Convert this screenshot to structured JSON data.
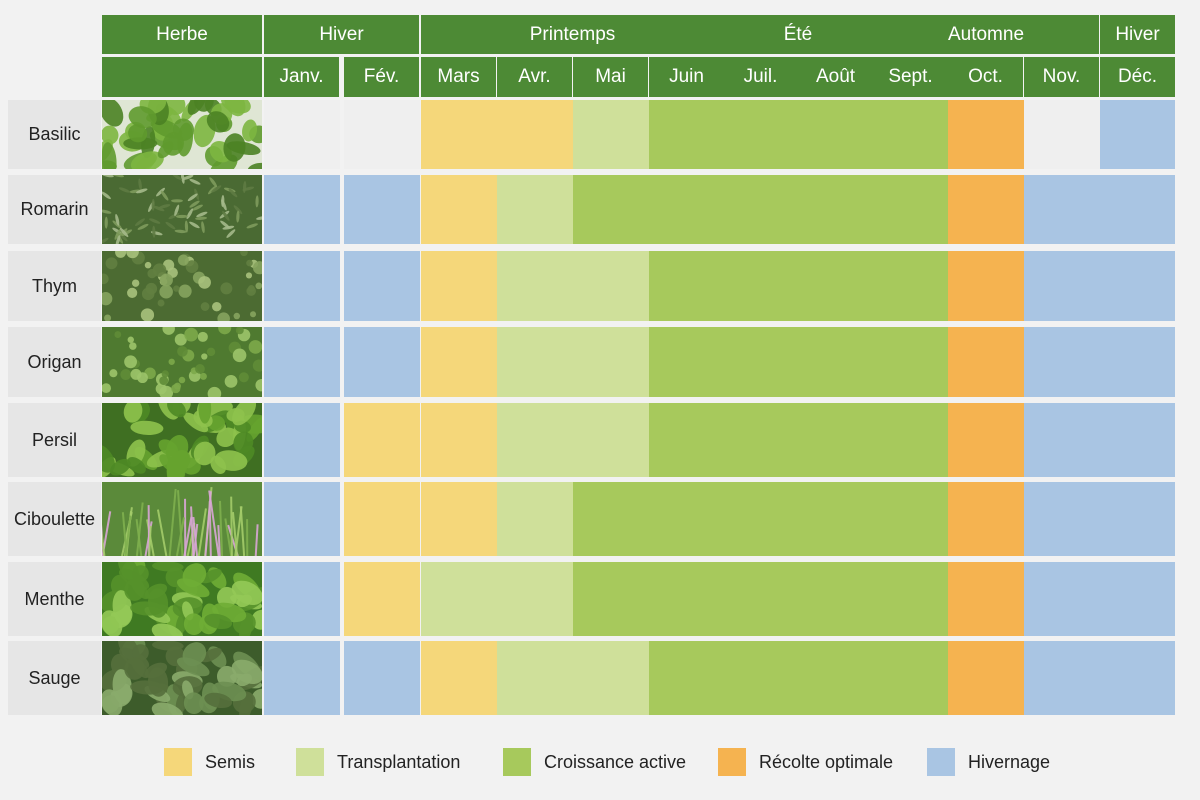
{
  "header": {
    "herb_label": "Herbe",
    "seasons": [
      {
        "label": "Hiver",
        "from": 0,
        "to": 1
      },
      {
        "label": "Printemps",
        "from": 2,
        "to": 5
      },
      {
        "label": "Été",
        "from": 6,
        "to": 7
      },
      {
        "label": "Automne",
        "from": 8,
        "to": 10
      },
      {
        "label": "Hiver",
        "from": 11,
        "to": 11
      }
    ],
    "months": [
      "Janv.",
      "Fév.",
      "Mars",
      "Avr.",
      "Mai",
      "Juin",
      "Juil.",
      "Août",
      "Sept.",
      "Oct.",
      "Nov.",
      "Déc."
    ]
  },
  "phases": {
    "semis": {
      "label": "Semis",
      "color": "#f5d77a"
    },
    "transplantation": {
      "label": "Transplantation",
      "color": "#cfe09a"
    },
    "croissance": {
      "label": "Croissance active",
      "color": "#a7c95c"
    },
    "recolte": {
      "label": "Récolte optimale",
      "color": "#f5b350"
    },
    "hivernage": {
      "label": "Hivernage",
      "color": "#a9c5e3"
    },
    "vide": {
      "label": "",
      "color": "#efefef"
    }
  },
  "legend_order": [
    "semis",
    "transplantation",
    "croissance",
    "recolte",
    "hivernage"
  ],
  "herbs": [
    {
      "name": "Basilic",
      "icon": "basil-photo",
      "months": [
        "vide",
        "vide",
        "semis",
        "semis",
        "transplantation",
        "croissance",
        "croissance",
        "croissance",
        "croissance",
        "recolte",
        "vide",
        "hivernage"
      ]
    },
    {
      "name": "Romarin",
      "icon": "rosemary-photo",
      "months": [
        "hivernage",
        "hivernage",
        "semis",
        "transplantation",
        "croissance",
        "croissance",
        "croissance",
        "croissance",
        "croissance",
        "recolte",
        "hivernage",
        "hivernage"
      ]
    },
    {
      "name": "Thym",
      "icon": "thyme-photo",
      "months": [
        "hivernage",
        "hivernage",
        "semis",
        "transplantation",
        "transplantation",
        "croissance",
        "croissance",
        "croissance",
        "croissance",
        "recolte",
        "hivernage",
        "hivernage"
      ]
    },
    {
      "name": "Origan",
      "icon": "oregano-photo",
      "months": [
        "hivernage",
        "hivernage",
        "semis",
        "transplantation",
        "transplantation",
        "croissance",
        "croissance",
        "croissance",
        "croissance",
        "recolte",
        "hivernage",
        "hivernage"
      ]
    },
    {
      "name": "Persil",
      "icon": "parsley-photo",
      "months": [
        "hivernage",
        "semis",
        "semis",
        "transplantation",
        "transplantation",
        "croissance",
        "croissance",
        "croissance",
        "croissance",
        "recolte",
        "hivernage",
        "hivernage"
      ]
    },
    {
      "name": "Ciboulette",
      "icon": "chives-photo",
      "months": [
        "hivernage",
        "semis",
        "semis",
        "transplantation",
        "croissance",
        "croissance",
        "croissance",
        "croissance",
        "croissance",
        "recolte",
        "hivernage",
        "hivernage"
      ]
    },
    {
      "name": "Menthe",
      "icon": "mint-photo",
      "months": [
        "hivernage",
        "semis",
        "transplantation",
        "transplantation",
        "croissance",
        "croissance",
        "croissance",
        "croissance",
        "croissance",
        "recolte",
        "hivernage",
        "hivernage"
      ]
    },
    {
      "name": "Sauge",
      "icon": "sage-photo",
      "months": [
        "hivernage",
        "hivernage",
        "semis",
        "transplantation",
        "transplantation",
        "croissance",
        "croissance",
        "croissance",
        "croissance",
        "recolte",
        "hivernage",
        "hivernage"
      ]
    }
  ]
}
